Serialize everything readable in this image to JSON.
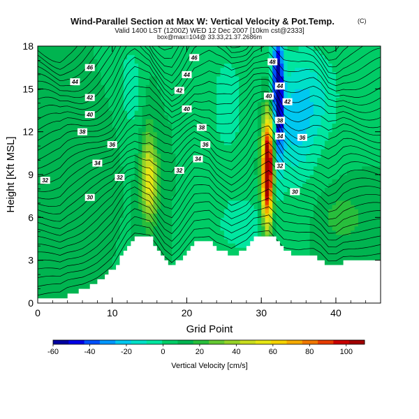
{
  "chart_data": {
    "type": "contour",
    "title": "Wind-Parallel Section at Max W: Vertical Velocity & Pot.Temp.",
    "title_mark": "(C)",
    "subtitle_line1": "Valid 1400 LST (1200Z) WED 12 Dec 2007 [10km cst@2333]",
    "subtitle_line2": "box@max=104@ 33.33,21.37.2686m",
    "xlabel": "Grid Point",
    "ylabel": "Height [Kft MSL]",
    "xlim": [
      0,
      46
    ],
    "ylim": [
      0,
      18
    ],
    "xticks": [
      0,
      10,
      20,
      30,
      40
    ],
    "yticks": [
      0,
      3,
      6,
      9,
      12,
      15,
      18
    ],
    "colorbar": {
      "label": "Vertical Velocity [cm/s]",
      "ticks": [
        -60,
        -40,
        -20,
        0,
        20,
        40,
        60,
        80,
        100
      ],
      "range": [
        -60,
        110
      ],
      "colors": [
        "#0000a0",
        "#0000e6",
        "#0050ff",
        "#0096ff",
        "#00c8f0",
        "#00e0c8",
        "#00e6a0",
        "#00cc66",
        "#00b450",
        "#28be3c",
        "#64c832",
        "#96d228",
        "#c8dc1e",
        "#e6e614",
        "#f5d200",
        "#f5aa00",
        "#f07800",
        "#e63c00",
        "#c80000",
        "#a00000"
      ]
    },
    "contour_labels": [
      {
        "text": "46",
        "x": 21.0,
        "y": 17.2
      },
      {
        "text": "46",
        "x": 7.0,
        "y": 16.5
      },
      {
        "text": "44",
        "x": 20.0,
        "y": 16.0
      },
      {
        "text": "44",
        "x": 5.0,
        "y": 15.5
      },
      {
        "text": "42",
        "x": 19.0,
        "y": 14.9
      },
      {
        "text": "42",
        "x": 7.0,
        "y": 14.4
      },
      {
        "text": "40",
        "x": 20.0,
        "y": 13.6
      },
      {
        "text": "40",
        "x": 7.0,
        "y": 13.2
      },
      {
        "text": "38",
        "x": 22.0,
        "y": 12.3
      },
      {
        "text": "38",
        "x": 6.0,
        "y": 12.0
      },
      {
        "text": "36",
        "x": 10.0,
        "y": 11.1
      },
      {
        "text": "36",
        "x": 22.5,
        "y": 11.1
      },
      {
        "text": "34",
        "x": 21.5,
        "y": 10.1
      },
      {
        "text": "34",
        "x": 8.0,
        "y": 9.8
      },
      {
        "text": "32",
        "x": 19.0,
        "y": 9.3
      },
      {
        "text": "32",
        "x": 11.0,
        "y": 8.8
      },
      {
        "text": "32",
        "x": 1.0,
        "y": 8.6
      },
      {
        "text": "30",
        "x": 7.0,
        "y": 7.4
      },
      {
        "text": "48",
        "x": 31.5,
        "y": 16.9
      },
      {
        "text": "44",
        "x": 32.5,
        "y": 15.2
      },
      {
        "text": "42",
        "x": 33.5,
        "y": 14.1
      },
      {
        "text": "40",
        "x": 31.0,
        "y": 14.5
      },
      {
        "text": "38",
        "x": 32.5,
        "y": 12.8
      },
      {
        "text": "36",
        "x": 35.5,
        "y": 11.6
      },
      {
        "text": "34",
        "x": 32.5,
        "y": 11.7
      },
      {
        "text": "32",
        "x": 32.5,
        "y": 9.6
      },
      {
        "text": "30",
        "x": 34.5,
        "y": 7.8
      }
    ]
  }
}
